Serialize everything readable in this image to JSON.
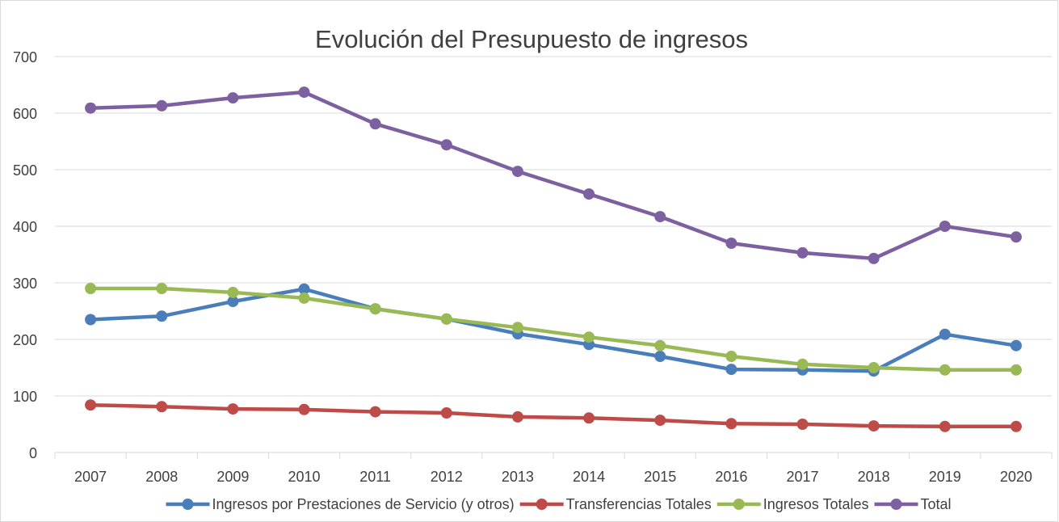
{
  "chart_data": {
    "type": "line",
    "title": "Evolución del Presupuesto de ingresos",
    "categories": [
      "2007",
      "2008",
      "2009",
      "2010",
      "2011",
      "2012",
      "2013",
      "2014",
      "2015",
      "2016",
      "2017",
      "2018",
      "2019",
      "2020"
    ],
    "series": [
      {
        "name": "Ingresos por Prestaciones de Servicio (y otros)",
        "color": "#4a7ebb",
        "values": [
          235,
          241,
          267,
          289,
          254,
          236,
          210,
          191,
          170,
          147,
          146,
          144,
          209,
          189
        ]
      },
      {
        "name": "Transferencias Totales",
        "color": "#be4b48",
        "values": [
          84,
          81,
          77,
          76,
          72,
          70,
          63,
          61,
          57,
          51,
          50,
          47,
          46,
          46
        ]
      },
      {
        "name": "Ingresos Totales",
        "color": "#98b954",
        "values": [
          290,
          290,
          283,
          273,
          254,
          236,
          221,
          204,
          189,
          170,
          156,
          150,
          146,
          146
        ]
      },
      {
        "name": "Total",
        "color": "#7d60a0",
        "values": [
          609,
          613,
          627,
          637,
          581,
          544,
          497,
          457,
          417,
          370,
          353,
          343,
          400,
          381
        ]
      }
    ],
    "ylim": [
      0,
      700
    ],
    "yticks": [
      0,
      100,
      200,
      300,
      400,
      500,
      600,
      700
    ],
    "grid": true,
    "legend": "bottom"
  }
}
